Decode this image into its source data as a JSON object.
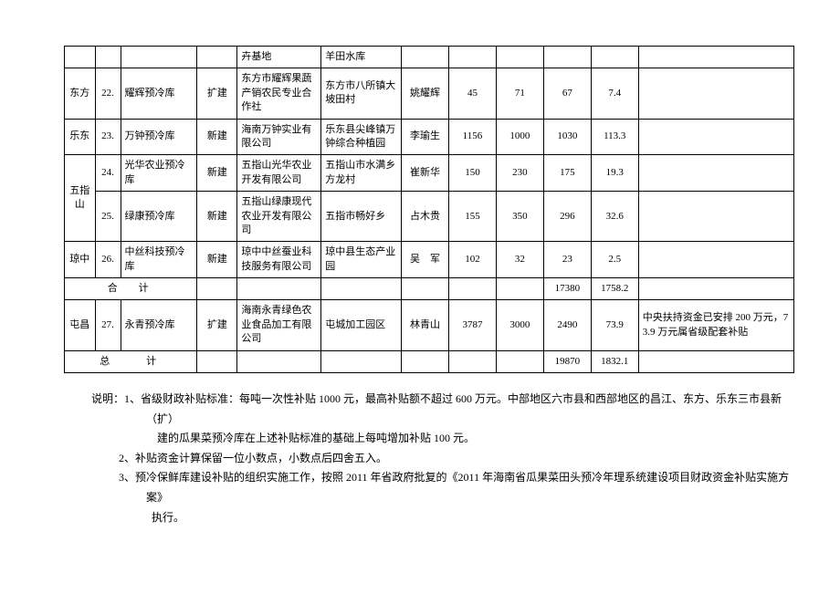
{
  "colwidths_pct": [
    4.2,
    3.5,
    10.5,
    5.5,
    11.5,
    11,
    6.5,
    6.5,
    6.5,
    6.5,
    6.5,
    21.3
  ],
  "table": {
    "rows": [
      {
        "region": "",
        "idx": "",
        "name": "",
        "type": "",
        "org": "卉基地",
        "addr": "羊田水库",
        "person": "",
        "v1": "",
        "v2": "",
        "v3": "",
        "v4": "",
        "remark": ""
      },
      {
        "region": "东方",
        "idx": "22.",
        "name": "耀辉预冷库",
        "type": "扩建",
        "org": "东方市耀辉果蔬产销农民专业合作社",
        "addr": "东方市八所镇大坡田村",
        "person": "姚耀辉",
        "v1": "45",
        "v2": "71",
        "v3": "67",
        "v4": "7.4",
        "remark": ""
      },
      {
        "region": "乐东",
        "idx": "23.",
        "name": "万钟预冷库",
        "type": "新建",
        "org": "海南万钟实业有限公司",
        "addr": "乐东县尖峰镇万钟综合种植园",
        "person": "李瑜生",
        "v1": "1156",
        "v2": "1000",
        "v3": "1030",
        "v4": "113.3",
        "remark": ""
      },
      {
        "region": "五指山",
        "region_rowspan": 2,
        "idx": "24.",
        "name": "光华农业预冷库",
        "type": "新建",
        "org": "五指山光华农业开发有限公司",
        "addr": "五指山市水满乡方龙村",
        "person": "崔新华",
        "v1": "150",
        "v2": "230",
        "v3": "175",
        "v4": "19.3",
        "remark": ""
      },
      {
        "idx": "25.",
        "name": "绿康预冷库",
        "type": "新建",
        "org": "五指山绿康现代农业开发有限公司",
        "addr": "五指市畅好乡",
        "person": "占木贵",
        "v1": "155",
        "v2": "350",
        "v3": "296",
        "v4": "32.6",
        "remark": ""
      },
      {
        "region": "琼中",
        "idx": "26.",
        "name": "中丝科技预冷库",
        "type": "新建",
        "org": "琼中中丝蚕业科技服务有限公司",
        "addr": "琼中县生态产业园",
        "person": "吴　军",
        "v1": "102",
        "v2": "32",
        "v3": "23",
        "v4": "2.5",
        "remark": ""
      },
      {
        "subtotal_label": "合　计",
        "v3": "17380",
        "v4": "1758.2"
      },
      {
        "region": "屯昌",
        "idx": "27.",
        "name": "永青预冷库",
        "type": "扩建",
        "org": "海南永青绿色农业食品加工有限公司",
        "addr": "屯城加工园区",
        "person": "林青山",
        "v1": "3787",
        "v2": "3000",
        "v3": "2490",
        "v4": "73.9",
        "remark": "中央扶持资金已安排 200 万元，73.9 万元属省级配套补贴"
      },
      {
        "total_label": "总　　计",
        "v3": "19870",
        "v4": "1832.1"
      }
    ]
  },
  "notes": {
    "l1a": "说明：1、省级财政补贴标准：每吨一次性补贴 1000 元，最高补贴额不超过 600 万元。中部地区六市县和西部地区的昌江、东方、乐东三市县新（扩）",
    "l1b": "建的瓜果菜预冷库在上述补贴标准的基础上每吨增加补贴 100 元。",
    "l2": "2、补贴资金计算保留一位小数点，小数点后四舍五入。",
    "l3a": "3、预冷保鲜库建设补贴的组织实施工作，按照 2011 年省政府批复的《2011 年海南省瓜果菜田头预冷年理系统建设项目财政资金补贴实施方案》",
    "l3b": "执行。"
  }
}
